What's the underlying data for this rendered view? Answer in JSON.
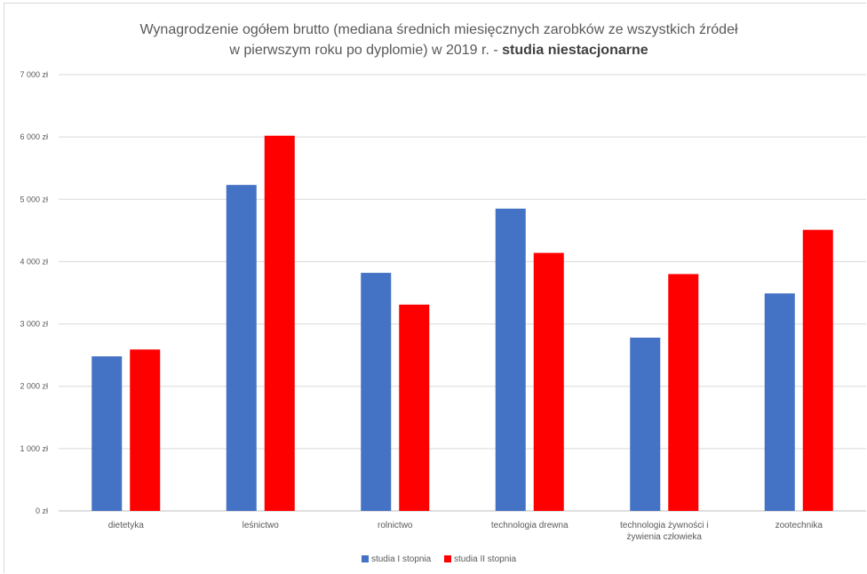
{
  "chart_data": {
    "type": "bar",
    "title_line1": "Wynagrodzenie ogółem brutto (mediana średnich miesięcznych zarobków ze wszystkich źródeł",
    "title_line2_normal": "w pierwszym roku po dyplomie) w 2019 r. - ",
    "title_line2_bold": "studia niestacjonarne",
    "categories": [
      [
        "dietetyka"
      ],
      [
        "leśnictwo"
      ],
      [
        "rolnictwo"
      ],
      [
        "technologia drewna"
      ],
      [
        "technologia żywności i",
        "żywienia człowieka"
      ],
      [
        "zootechnika"
      ]
    ],
    "series": [
      {
        "name": "studia I stopnia",
        "color": "#4472c4",
        "values": [
          2480,
          5230,
          3820,
          4850,
          2780,
          3490
        ]
      },
      {
        "name": "studia II stopnia",
        "color": "#ff0000",
        "values": [
          2590,
          6020,
          3310,
          4140,
          3800,
          4510
        ]
      }
    ],
    "ylim": [
      0,
      7000
    ],
    "yticks": [
      0,
      1000,
      2000,
      3000,
      4000,
      5000,
      6000,
      7000
    ],
    "ytick_labels": [
      "0 zł",
      "1 000 zł",
      "2 000 zł",
      "3 000 zł",
      "4 000 zł",
      "5 000 zł",
      "6 000 zł",
      "7 000 zł"
    ],
    "grid": true,
    "legend_position": "bottom"
  }
}
